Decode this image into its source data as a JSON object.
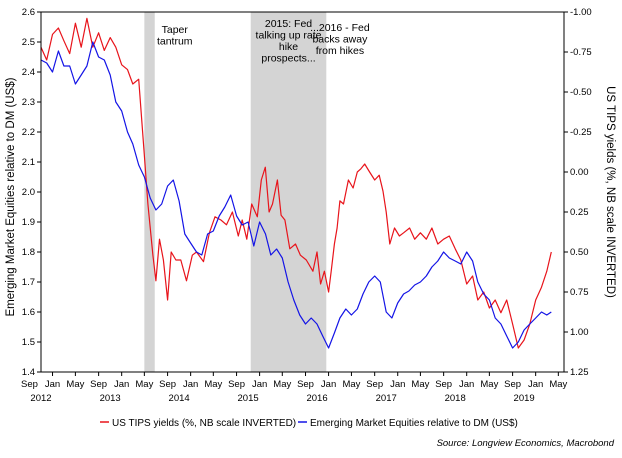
{
  "chart_data": {
    "type": "line",
    "title": "",
    "left_axis": {
      "label": "Emerging Market Equities relative to DM (US$)",
      "range": [
        1.4,
        2.6
      ],
      "ticks": [
        "1.4",
        "1.5",
        "1.6",
        "1.7",
        "1.8",
        "1.9",
        "2.0",
        "2.1",
        "2.2",
        "2.3",
        "2.4",
        "2.5",
        "2.6"
      ]
    },
    "right_axis": {
      "label": "US TIPS yields (%, NB scale INVERTED)",
      "inverted": true,
      "range": [
        -1.0,
        1.25
      ],
      "ticks": [
        "-1.00",
        "-0.75",
        "-0.50",
        "-0.25",
        "0.00",
        "0.25",
        "0.50",
        "0.75",
        "1.00",
        "1.25"
      ]
    },
    "x_axis": {
      "range": [
        "2011-11-01",
        "2019-05-31"
      ],
      "month_ticks": [
        {
          "label": "Sep",
          "date": "2011-09-01"
        },
        {
          "label": "Jan",
          "date": "2012-01-01"
        },
        {
          "label": "May",
          "date": "2012-05-01"
        },
        {
          "label": "Sep",
          "date": "2012-09-01"
        },
        {
          "label": "Jan",
          "date": "2013-01-01"
        },
        {
          "label": "May",
          "date": "2013-05-01"
        },
        {
          "label": "Sep",
          "date": "2013-09-01"
        },
        {
          "label": "Jan",
          "date": "2014-01-01"
        },
        {
          "label": "May",
          "date": "2014-05-01"
        },
        {
          "label": "Sep",
          "date": "2014-09-01"
        },
        {
          "label": "Jan",
          "date": "2015-01-01"
        },
        {
          "label": "May",
          "date": "2015-05-01"
        },
        {
          "label": "Sep",
          "date": "2015-09-01"
        },
        {
          "label": "Jan",
          "date": "2016-01-01"
        },
        {
          "label": "May",
          "date": "2016-05-01"
        },
        {
          "label": "Sep",
          "date": "2016-09-01"
        },
        {
          "label": "Jan",
          "date": "2017-01-01"
        },
        {
          "label": "May",
          "date": "2017-05-01"
        },
        {
          "label": "Sep",
          "date": "2017-09-01"
        },
        {
          "label": "Jan",
          "date": "2018-01-01"
        },
        {
          "label": "May",
          "date": "2018-05-01"
        },
        {
          "label": "Sep",
          "date": "2018-09-01"
        },
        {
          "label": "Jan",
          "date": "2019-01-01"
        },
        {
          "label": "May",
          "date": "2019-05-01"
        }
      ],
      "year_labels": [
        {
          "label": "2012",
          "date": "2011-11-01"
        },
        {
          "label": "2013",
          "date": "2012-11-01"
        },
        {
          "label": "2014",
          "date": "2013-11-01"
        },
        {
          "label": "2015",
          "date": "2014-11-01"
        },
        {
          "label": "2016",
          "date": "2015-11-01"
        },
        {
          "label": "2017",
          "date": "2016-11-01"
        },
        {
          "label": "2018",
          "date": "2017-11-01"
        },
        {
          "label": "2019",
          "date": "2018-11-01"
        }
      ]
    },
    "shaded_periods": [
      {
        "start": "2013-05-01",
        "end": "2013-06-25",
        "label": "Taper\ntantrum"
      },
      {
        "start": "2014-11-15",
        "end": "2015-12-20",
        "label": "2015: Fed\ntalking up rate\nhike\nprospects..."
      }
    ],
    "annotations": [
      {
        "text": "...2016 - Fed\nbacks away\nfrom hikes",
        "date": "2016-03-01",
        "level": -0.83
      }
    ],
    "series": [
      {
        "name": "US TIPS yields (%, NB scale INVERTED)",
        "axis": "right",
        "color": "#e8141b",
        "points": [
          [
            "2011-11-01",
            -0.78
          ],
          [
            "2011-12-01",
            -0.7
          ],
          [
            "2012-01-01",
            -0.86
          ],
          [
            "2012-02-01",
            -0.9
          ],
          [
            "2012-03-01",
            -0.82
          ],
          [
            "2012-04-01",
            -0.74
          ],
          [
            "2012-05-01",
            -0.93
          ],
          [
            "2012-06-01",
            -0.78
          ],
          [
            "2012-07-01",
            -0.96
          ],
          [
            "2012-08-01",
            -0.78
          ],
          [
            "2012-09-01",
            -0.87
          ],
          [
            "2012-10-01",
            -0.76
          ],
          [
            "2012-11-01",
            -0.84
          ],
          [
            "2012-12-01",
            -0.78
          ],
          [
            "2013-01-01",
            -0.67
          ],
          [
            "2013-02-01",
            -0.64
          ],
          [
            "2013-03-01",
            -0.55
          ],
          [
            "2013-04-01",
            -0.58
          ],
          [
            "2013-05-01",
            -0.1
          ],
          [
            "2013-05-20",
            0.2
          ],
          [
            "2013-06-15",
            0.52
          ],
          [
            "2013-07-01",
            0.68
          ],
          [
            "2013-07-20",
            0.42
          ],
          [
            "2013-08-10",
            0.55
          ],
          [
            "2013-09-01",
            0.8
          ],
          [
            "2013-09-20",
            0.5
          ],
          [
            "2013-10-15",
            0.55
          ],
          [
            "2013-11-10",
            0.55
          ],
          [
            "2013-12-10",
            0.68
          ],
          [
            "2014-01-10",
            0.52
          ],
          [
            "2014-02-01",
            0.5
          ],
          [
            "2014-03-10",
            0.56
          ],
          [
            "2014-04-10",
            0.38
          ],
          [
            "2014-05-10",
            0.28
          ],
          [
            "2014-06-10",
            0.3
          ],
          [
            "2014-07-10",
            0.33
          ],
          [
            "2014-08-10",
            0.25
          ],
          [
            "2014-09-10",
            0.4
          ],
          [
            "2014-10-01",
            0.3
          ],
          [
            "2014-10-25",
            0.42
          ],
          [
            "2014-11-20",
            0.2
          ],
          [
            "2014-12-20",
            0.28
          ],
          [
            "2015-01-10",
            0.05
          ],
          [
            "2015-01-31",
            -0.03
          ],
          [
            "2015-02-20",
            0.25
          ],
          [
            "2015-03-10",
            0.2
          ],
          [
            "2015-04-05",
            0.05
          ],
          [
            "2015-04-25",
            0.27
          ],
          [
            "2015-05-15",
            0.3
          ],
          [
            "2015-06-10",
            0.48
          ],
          [
            "2015-07-10",
            0.45
          ],
          [
            "2015-08-05",
            0.52
          ],
          [
            "2015-09-05",
            0.55
          ],
          [
            "2015-10-10",
            0.62
          ],
          [
            "2015-11-01",
            0.5
          ],
          [
            "2015-11-20",
            0.7
          ],
          [
            "2015-12-10",
            0.62
          ],
          [
            "2016-01-01",
            0.75
          ],
          [
            "2016-01-15",
            0.62
          ],
          [
            "2016-02-01",
            0.45
          ],
          [
            "2016-02-15",
            0.35
          ],
          [
            "2016-03-01",
            0.18
          ],
          [
            "2016-03-20",
            0.2
          ],
          [
            "2016-04-15",
            0.05
          ],
          [
            "2016-05-10",
            0.1
          ],
          [
            "2016-06-01",
            0.0
          ],
          [
            "2016-06-20",
            -0.02
          ],
          [
            "2016-07-10",
            -0.05
          ],
          [
            "2016-08-05",
            0.0
          ],
          [
            "2016-09-01",
            0.05
          ],
          [
            "2016-09-25",
            0.02
          ],
          [
            "2016-10-15",
            0.12
          ],
          [
            "2016-11-01",
            0.25
          ],
          [
            "2016-11-20",
            0.45
          ],
          [
            "2016-12-15",
            0.35
          ],
          [
            "2017-01-10",
            0.4
          ],
          [
            "2017-02-01",
            0.38
          ],
          [
            "2017-03-05",
            0.35
          ],
          [
            "2017-04-01",
            0.42
          ],
          [
            "2017-05-01",
            0.38
          ],
          [
            "2017-06-01",
            0.42
          ],
          [
            "2017-07-01",
            0.35
          ],
          [
            "2017-08-01",
            0.45
          ],
          [
            "2017-09-01",
            0.42
          ],
          [
            "2017-10-01",
            0.4
          ],
          [
            "2017-11-01",
            0.48
          ],
          [
            "2017-12-01",
            0.55
          ],
          [
            "2018-01-01",
            0.7
          ],
          [
            "2018-02-01",
            0.65
          ],
          [
            "2018-03-01",
            0.8
          ],
          [
            "2018-04-01",
            0.75
          ],
          [
            "2018-05-01",
            0.85
          ],
          [
            "2018-06-01",
            0.8
          ],
          [
            "2018-07-01",
            0.88
          ],
          [
            "2018-08-01",
            0.8
          ],
          [
            "2018-09-01",
            0.95
          ],
          [
            "2018-10-01",
            1.1
          ],
          [
            "2018-11-01",
            1.05
          ],
          [
            "2018-12-01",
            0.95
          ],
          [
            "2019-01-01",
            0.8
          ],
          [
            "2019-02-01",
            0.72
          ],
          [
            "2019-03-01",
            0.62
          ],
          [
            "2019-03-25",
            0.5
          ]
        ]
      },
      {
        "name": "Emerging Market Equities relative to DM (US$)",
        "axis": "left",
        "color": "#1414e6",
        "points": [
          [
            "2011-11-01",
            2.44
          ],
          [
            "2011-12-01",
            2.43
          ],
          [
            "2012-01-01",
            2.4
          ],
          [
            "2012-02-01",
            2.47
          ],
          [
            "2012-03-01",
            2.42
          ],
          [
            "2012-04-01",
            2.42
          ],
          [
            "2012-05-01",
            2.36
          ],
          [
            "2012-06-01",
            2.39
          ],
          [
            "2012-07-01",
            2.42
          ],
          [
            "2012-08-01",
            2.5
          ],
          [
            "2012-09-01",
            2.45
          ],
          [
            "2012-10-01",
            2.44
          ],
          [
            "2012-11-01",
            2.39
          ],
          [
            "2012-12-01",
            2.3
          ],
          [
            "2013-01-01",
            2.27
          ],
          [
            "2013-02-01",
            2.2
          ],
          [
            "2013-03-01",
            2.16
          ],
          [
            "2013-04-01",
            2.09
          ],
          [
            "2013-05-01",
            2.05
          ],
          [
            "2013-06-01",
            1.98
          ],
          [
            "2013-07-01",
            1.94
          ],
          [
            "2013-08-01",
            1.96
          ],
          [
            "2013-09-01",
            2.02
          ],
          [
            "2013-10-01",
            2.04
          ],
          [
            "2013-11-01",
            1.97
          ],
          [
            "2013-12-01",
            1.86
          ],
          [
            "2014-01-01",
            1.83
          ],
          [
            "2014-02-01",
            1.8
          ],
          [
            "2014-03-01",
            1.79
          ],
          [
            "2014-04-01",
            1.86
          ],
          [
            "2014-05-01",
            1.87
          ],
          [
            "2014-06-01",
            1.92
          ],
          [
            "2014-07-01",
            1.95
          ],
          [
            "2014-08-01",
            1.99
          ],
          [
            "2014-09-01",
            1.92
          ],
          [
            "2014-10-01",
            1.89
          ],
          [
            "2014-11-01",
            1.9
          ],
          [
            "2014-12-01",
            1.82
          ],
          [
            "2015-01-01",
            1.9
          ],
          [
            "2015-02-01",
            1.86
          ],
          [
            "2015-03-01",
            1.79
          ],
          [
            "2015-04-01",
            1.81
          ],
          [
            "2015-05-01",
            1.78
          ],
          [
            "2015-06-01",
            1.7
          ],
          [
            "2015-07-01",
            1.64
          ],
          [
            "2015-08-01",
            1.59
          ],
          [
            "2015-09-01",
            1.56
          ],
          [
            "2015-10-01",
            1.58
          ],
          [
            "2015-11-01",
            1.56
          ],
          [
            "2015-12-01",
            1.52
          ],
          [
            "2016-01-01",
            1.48
          ],
          [
            "2016-02-01",
            1.53
          ],
          [
            "2016-03-01",
            1.58
          ],
          [
            "2016-04-01",
            1.61
          ],
          [
            "2016-05-01",
            1.59
          ],
          [
            "2016-06-01",
            1.61
          ],
          [
            "2016-07-01",
            1.66
          ],
          [
            "2016-08-01",
            1.7
          ],
          [
            "2016-09-01",
            1.72
          ],
          [
            "2016-10-01",
            1.7
          ],
          [
            "2016-11-01",
            1.6
          ],
          [
            "2016-12-01",
            1.58
          ],
          [
            "2017-01-01",
            1.63
          ],
          [
            "2017-02-01",
            1.66
          ],
          [
            "2017-03-01",
            1.67
          ],
          [
            "2017-04-01",
            1.69
          ],
          [
            "2017-05-01",
            1.7
          ],
          [
            "2017-06-01",
            1.72
          ],
          [
            "2017-07-01",
            1.75
          ],
          [
            "2017-08-01",
            1.77
          ],
          [
            "2017-09-01",
            1.8
          ],
          [
            "2017-10-01",
            1.78
          ],
          [
            "2017-11-01",
            1.77
          ],
          [
            "2017-12-01",
            1.76
          ],
          [
            "2018-01-01",
            1.8
          ],
          [
            "2018-02-01",
            1.77
          ],
          [
            "2018-03-01",
            1.7
          ],
          [
            "2018-04-01",
            1.66
          ],
          [
            "2018-05-01",
            1.64
          ],
          [
            "2018-06-01",
            1.58
          ],
          [
            "2018-07-01",
            1.56
          ],
          [
            "2018-08-01",
            1.52
          ],
          [
            "2018-09-01",
            1.48
          ],
          [
            "2018-10-01",
            1.5
          ],
          [
            "2018-11-01",
            1.54
          ],
          [
            "2018-12-01",
            1.56
          ],
          [
            "2019-01-01",
            1.58
          ],
          [
            "2019-02-01",
            1.6
          ],
          [
            "2019-03-01",
            1.59
          ],
          [
            "2019-03-25",
            1.6
          ]
        ]
      }
    ],
    "legend": {
      "placement": "bottom"
    },
    "grid": false
  },
  "source_text": "Source: Longview Economics, Macrobond"
}
